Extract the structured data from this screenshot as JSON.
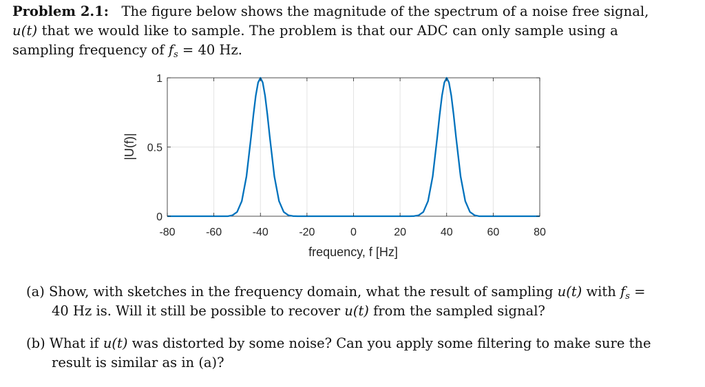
{
  "problem": {
    "label": "Problem 2.1:",
    "line1": "The figure below shows the magnitude of the spectrum of a noise free signal,",
    "line2_sym": "u(t)",
    "line2": " that we would like to sample.  The problem is that our ADC can only sample using a",
    "line3_pre": "sampling frequency of ",
    "line3_sym": "f",
    "line3_sub": "s",
    "line3_post": " = 40 Hz."
  },
  "questions": [
    {
      "label": "(a)",
      "l1a": "Show, with sketches in the frequency domain, what the result of sampling ",
      "l1sym": "u(t)",
      "l1b": " with ",
      "l1f": "f",
      "l1sub": "s",
      "l1c": " =",
      "l2a": "40 Hz is. Will it still be possible to recover ",
      "l2sym": "u(t)",
      "l2b": " from the sampled signal?"
    },
    {
      "label": "(b)",
      "l1a": "What if ",
      "l1sym": "u(t)",
      "l1b": " was distorted by some noise? Can you apply some filtering to make sure the",
      "l2a": "result is similar as in (a)?"
    }
  ],
  "chart_data": {
    "type": "line",
    "title": "",
    "xlabel": "frequency, f [Hz]",
    "ylabel": "|U(f)|",
    "xlim": [
      -80,
      80
    ],
    "ylim": [
      0,
      1
    ],
    "xticks": [
      "-80",
      "-60",
      "-40",
      "-20",
      "0",
      "20",
      "40",
      "60",
      "80"
    ],
    "yticks": [
      "0",
      "0.5",
      "1"
    ],
    "grid": true,
    "color": "#0072BD",
    "series": [
      {
        "x": [
          -80,
          -56,
          -54,
          -52,
          -50,
          -48,
          -46,
          -44,
          -43,
          -42,
          -41,
          -40,
          -39,
          -38,
          -37,
          -36,
          -34,
          -32,
          -30,
          -28,
          -26,
          -24,
          24,
          26,
          28,
          30,
          32,
          34,
          36,
          37,
          38,
          39,
          40,
          41,
          42,
          43,
          44,
          46,
          48,
          50,
          52,
          54,
          56,
          80
        ],
        "y": [
          0,
          0,
          0.0,
          0.007,
          0.031,
          0.109,
          0.288,
          0.575,
          0.733,
          0.871,
          0.966,
          1,
          0.966,
          0.871,
          0.733,
          0.575,
          0.288,
          0.109,
          0.031,
          0.007,
          0.001,
          0,
          0,
          0.001,
          0.007,
          0.031,
          0.109,
          0.288,
          0.575,
          0.733,
          0.871,
          0.966,
          1,
          0.966,
          0.871,
          0.733,
          0.575,
          0.288,
          0.109,
          0.031,
          0.007,
          0.0,
          0,
          0
        ]
      }
    ]
  }
}
